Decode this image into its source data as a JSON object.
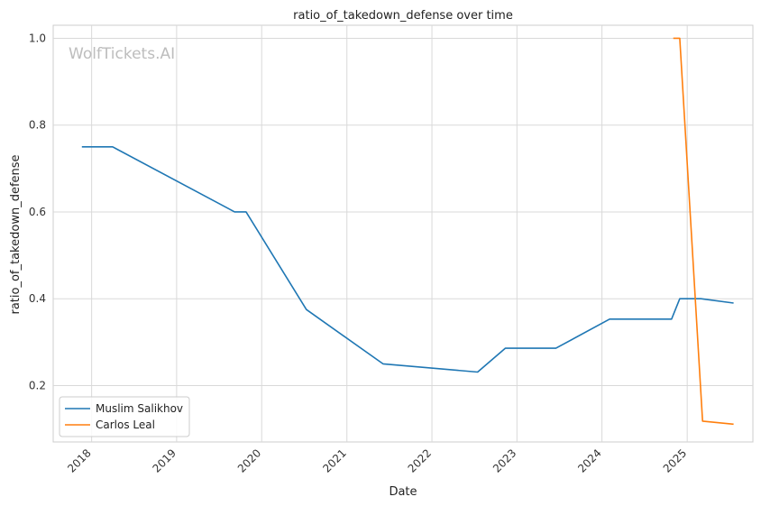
{
  "chart_data": {
    "type": "line",
    "title": "ratio_of_takedown_defense over time",
    "xlabel": "Date",
    "ylabel": "ratio_of_takedown_defense",
    "watermark": "WolfTickets.AI",
    "x_tick_labels": [
      "2018",
      "2019",
      "2020",
      "2021",
      "2022",
      "2023",
      "2024",
      "2025"
    ],
    "y_tick_labels": [
      "0.2",
      "0.4",
      "0.6",
      "0.8",
      "1.0"
    ],
    "xlim": [
      "2017-07-20",
      "2025-10-10"
    ],
    "ylim": [
      0.07,
      1.03
    ],
    "grid": true,
    "legend_position": "lower-left",
    "series": [
      {
        "name": "Muslim Salikhov",
        "color": "#1f77b4",
        "points": [
          [
            "2017-11-20",
            0.75
          ],
          [
            "2018-04-01",
            0.75
          ],
          [
            "2019-09-07",
            0.6
          ],
          [
            "2019-10-26",
            0.6
          ],
          [
            "2020-07-11",
            0.375
          ],
          [
            "2021-06-05",
            0.25
          ],
          [
            "2022-07-16",
            0.231
          ],
          [
            "2022-11-12",
            0.286
          ],
          [
            "2023-06-17",
            0.286
          ],
          [
            "2024-02-03",
            0.353
          ],
          [
            "2024-10-26",
            0.353
          ],
          [
            "2024-11-30",
            0.4
          ],
          [
            "2025-03-01",
            0.4
          ],
          [
            "2025-07-19",
            0.39
          ]
        ]
      },
      {
        "name": "Carlos Leal",
        "color": "#ff7f0e",
        "points": [
          [
            "2024-11-02",
            1.0
          ],
          [
            "2024-11-30",
            1.0
          ],
          [
            "2025-03-08",
            0.118
          ],
          [
            "2025-07-19",
            0.111
          ]
        ]
      }
    ]
  }
}
